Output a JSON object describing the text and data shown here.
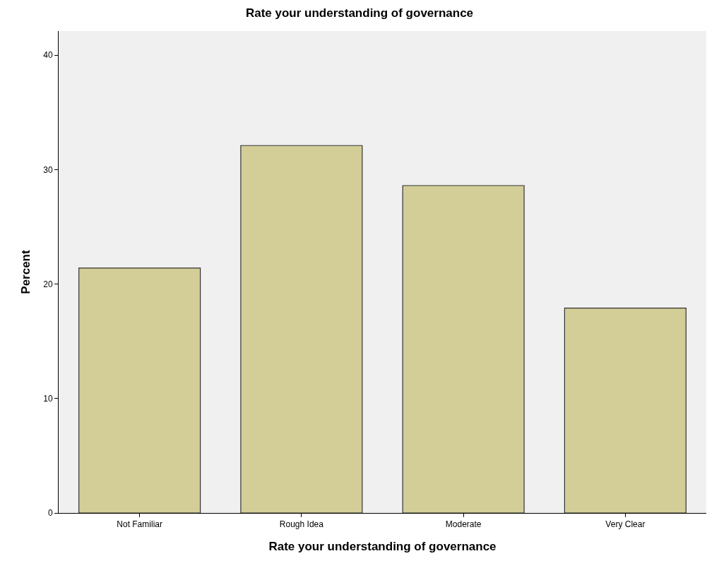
{
  "chart_data": {
    "type": "bar",
    "title": "Rate your understanding of governance",
    "xlabel": "Rate your understanding of governance",
    "ylabel": "Percent",
    "categories": [
      "Not Familiar",
      "Rough Idea",
      "Moderate",
      "Very Clear"
    ],
    "values": [
      21.4,
      32.1,
      28.6,
      17.9
    ],
    "color": "#d3ce97",
    "ylim": [
      0,
      42.1
    ],
    "yticks": [
      0,
      10,
      20,
      30,
      40
    ],
    "grid": false
  }
}
